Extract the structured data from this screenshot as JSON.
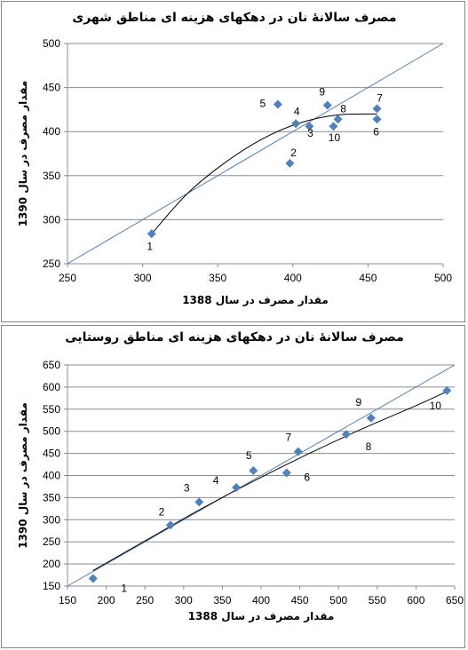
{
  "chart_data": [
    {
      "type": "scatter",
      "title": "مصرف سالانۀ نان در دهکهای هزینه ای مناطق شهری",
      "xlabel": "مقدار مصرف در سال 1388",
      "ylabel": "مقدار مصرف در سال 1390",
      "xlim": [
        250,
        500
      ],
      "ylim": [
        250,
        500
      ],
      "x_ticks": [
        "250",
        "300",
        "350",
        "400",
        "450",
        "500"
      ],
      "y_ticks": [
        "250",
        "300",
        "350",
        "400",
        "450",
        "500"
      ],
      "grid": "horizontal",
      "points": [
        {
          "label": "1",
          "x": 306,
          "y": 284
        },
        {
          "label": "2",
          "x": 398,
          "y": 364
        },
        {
          "label": "3",
          "x": 411,
          "y": 406
        },
        {
          "label": "4",
          "x": 402,
          "y": 409
        },
        {
          "label": "5",
          "x": 390,
          "y": 431
        },
        {
          "label": "6",
          "x": 456,
          "y": 414
        },
        {
          "label": "7",
          "x": 456,
          "y": 426
        },
        {
          "label": "8",
          "x": 430,
          "y": 414
        },
        {
          "label": "9",
          "x": 423,
          "y": 430
        },
        {
          "label": "10",
          "x": 427,
          "y": 406
        }
      ],
      "reference_line": "y = x",
      "trend_line": {
        "type": "polynomial",
        "x": [
          306,
          330,
          355,
          380,
          405,
          430,
          456
        ],
        "y": [
          284,
          330,
          365,
          392,
          410,
          419,
          420
        ]
      },
      "colors": {
        "marker": "#4f81bd",
        "reference": "#4f81bd",
        "trend": "#000000",
        "grid": "#8c8c8c"
      }
    },
    {
      "type": "scatter",
      "title": "مصرف سالانۀ نان در دهکهای هزینه ای مناطق روستایی",
      "xlabel": "مقدار مصرف در سال 1388",
      "ylabel": "مقدار مصرف در سال 1390",
      "xlim": [
        150,
        650
      ],
      "ylim": [
        150,
        650
      ],
      "x_ticks": [
        "150",
        "200",
        "250",
        "300",
        "350",
        "400",
        "450",
        "500",
        "550",
        "600",
        "650"
      ],
      "y_ticks": [
        "150",
        "200",
        "250",
        "300",
        "350",
        "400",
        "450",
        "500",
        "550",
        "600",
        "650"
      ],
      "grid": "horizontal",
      "points": [
        {
          "label": "1",
          "x": 183,
          "y": 167
        },
        {
          "label": "2",
          "x": 283,
          "y": 288
        },
        {
          "label": "3",
          "x": 320,
          "y": 340
        },
        {
          "label": "4",
          "x": 368,
          "y": 373
        },
        {
          "label": "5",
          "x": 390,
          "y": 411
        },
        {
          "label": "6",
          "x": 433,
          "y": 406
        },
        {
          "label": "7",
          "x": 448,
          "y": 454
        },
        {
          "label": "8",
          "x": 510,
          "y": 493
        },
        {
          "label": "9",
          "x": 542,
          "y": 530
        },
        {
          "label": "10",
          "x": 640,
          "y": 592
        }
      ],
      "reference_line": "y = x",
      "trend_line": {
        "type": "polynomial",
        "x": [
          183,
          250,
          320,
          390,
          460,
          530,
          600,
          640
        ],
        "y": [
          185,
          252,
          322,
          387,
          448,
          505,
          558,
          590
        ]
      },
      "colors": {
        "marker": "#4f81bd",
        "reference": "#4f81bd",
        "trend": "#000000",
        "grid": "#8c8c8c"
      }
    }
  ]
}
